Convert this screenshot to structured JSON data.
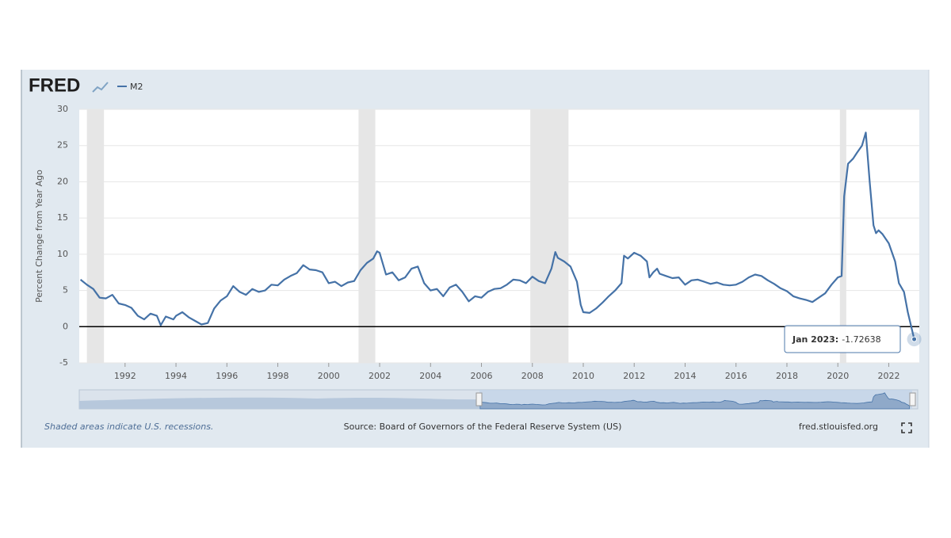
{
  "chart_data": {
    "type": "line",
    "logo": "FRED",
    "y_label": "Percent Change from Year Ago",
    "source": "Source: Board of Governors of the Federal Reserve System (US)",
    "note": "Shaded areas indicate U.S. recessions.",
    "site": "fred.stlouisfed.org",
    "tooltip_label": "Jan 2023:",
    "grid": true,
    "xlim": [
      1990.2,
      2023.2
    ],
    "ylim": [
      -5,
      30
    ],
    "xticks": [
      1992,
      1994,
      1996,
      1998,
      2000,
      2002,
      2004,
      2006,
      2008,
      2010,
      2012,
      2014,
      2016,
      2018,
      2020,
      2022
    ],
    "yticks": [
      -5,
      0,
      5,
      10,
      15,
      20,
      25,
      30
    ],
    "recessions": [
      [
        1990.5,
        1991.17
      ],
      [
        2001.17,
        2001.83
      ],
      [
        2007.92,
        2009.42
      ],
      [
        2020.08,
        2020.33
      ]
    ],
    "series": [
      {
        "name": "M2",
        "color": "#4572a7",
        "x": [
          1990.25,
          1990.5,
          1990.75,
          1991.0,
          1991.25,
          1991.5,
          1991.75,
          1992.0,
          1992.25,
          1992.5,
          1992.75,
          1993.0,
          1993.25,
          1993.4,
          1993.6,
          1993.9,
          1994.0,
          1994.25,
          1994.5,
          1994.75,
          1995.0,
          1995.25,
          1995.5,
          1995.75,
          1996.0,
          1996.25,
          1996.5,
          1996.75,
          1997.0,
          1997.25,
          1997.5,
          1997.75,
          1998.0,
          1998.25,
          1998.5,
          1998.75,
          1999.0,
          1999.25,
          1999.5,
          1999.75,
          2000.0,
          2000.25,
          2000.5,
          2000.75,
          2001.0,
          2001.25,
          2001.5,
          2001.75,
          2001.9,
          2002.0,
          2002.25,
          2002.5,
          2002.75,
          2003.0,
          2003.25,
          2003.5,
          2003.75,
          2004.0,
          2004.25,
          2004.5,
          2004.75,
          2005.0,
          2005.25,
          2005.5,
          2005.75,
          2006.0,
          2006.25,
          2006.5,
          2006.75,
          2007.0,
          2007.25,
          2007.5,
          2007.75,
          2008.0,
          2008.25,
          2008.5,
          2008.75,
          2008.9,
          2009.0,
          2009.25,
          2009.5,
          2009.75,
          2009.9,
          2010.0,
          2010.25,
          2010.5,
          2010.75,
          2011.0,
          2011.25,
          2011.5,
          2011.6,
          2011.75,
          2012.0,
          2012.25,
          2012.5,
          2012.6,
          2012.75,
          2012.9,
          2013.0,
          2013.25,
          2013.5,
          2013.75,
          2014.0,
          2014.25,
          2014.5,
          2014.75,
          2015.0,
          2015.25,
          2015.5,
          2015.75,
          2016.0,
          2016.25,
          2016.5,
          2016.75,
          2017.0,
          2017.25,
          2017.5,
          2017.75,
          2018.0,
          2018.25,
          2018.5,
          2018.75,
          2019.0,
          2019.25,
          2019.5,
          2019.75,
          2020.0,
          2020.15,
          2020.25,
          2020.4,
          2020.6,
          2020.75,
          2020.95,
          2021.1,
          2021.25,
          2021.4,
          2021.5,
          2021.6,
          2021.75,
          2022.0,
          2022.25,
          2022.4,
          2022.6,
          2022.75,
          2023.0
        ],
        "values": [
          6.5,
          5.8,
          5.2,
          4.0,
          3.9,
          4.4,
          3.2,
          3.0,
          2.6,
          1.5,
          1.0,
          1.8,
          1.5,
          0.2,
          1.4,
          1.0,
          1.5,
          2.0,
          1.3,
          0.8,
          0.3,
          0.5,
          2.5,
          3.6,
          4.2,
          5.6,
          4.8,
          4.4,
          5.2,
          4.8,
          5.0,
          5.8,
          5.7,
          6.5,
          7.0,
          7.4,
          8.5,
          7.9,
          7.8,
          7.5,
          6.0,
          6.2,
          5.6,
          6.1,
          6.3,
          7.8,
          8.8,
          9.4,
          10.4,
          10.2,
          7.2,
          7.5,
          6.4,
          6.8,
          8.0,
          8.3,
          6.0,
          5.0,
          5.2,
          4.2,
          5.4,
          5.8,
          4.8,
          3.5,
          4.2,
          4.0,
          4.8,
          5.2,
          5.3,
          5.8,
          6.5,
          6.4,
          6.0,
          6.9,
          6.3,
          6.0,
          8.0,
          10.3,
          9.5,
          9.0,
          8.3,
          6.2,
          3.0,
          2.0,
          1.9,
          2.5,
          3.3,
          4.2,
          5.0,
          6.0,
          9.8,
          9.4,
          10.2,
          9.8,
          9.0,
          6.8,
          7.5,
          8.0,
          7.3,
          7.0,
          6.7,
          6.8,
          5.8,
          6.4,
          6.5,
          6.2,
          5.9,
          6.1,
          5.8,
          5.7,
          5.8,
          6.2,
          6.8,
          7.2,
          7.0,
          6.4,
          5.9,
          5.3,
          4.9,
          4.2,
          3.9,
          3.7,
          3.4,
          4.0,
          4.6,
          5.8,
          6.8,
          7.0,
          18.0,
          22.5,
          23.2,
          24.0,
          25.0,
          26.8,
          20.0,
          14.0,
          12.9,
          13.3,
          12.8,
          11.5,
          9.0,
          6.0,
          4.8,
          2.0,
          -1.72638
        ]
      }
    ]
  }
}
